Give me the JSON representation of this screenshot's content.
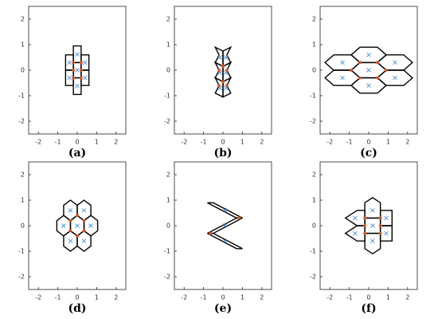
{
  "chart_data": [
    {
      "type": "polygon",
      "caption": "(a)",
      "xlim": [
        -2.5,
        2.5
      ],
      "ylim": [
        -2.5,
        2.5
      ],
      "xticks": [
        -2,
        -1,
        0,
        1,
        2
      ],
      "yticks": [
        -2,
        -1,
        0,
        1,
        2
      ],
      "cell_color": "#000000",
      "site_color": "#4a90d9",
      "node_color": "#d9531e",
      "cells": [
        {
          "x": [
            -0.2,
            0.2,
            0.2,
            -0.2
          ],
          "y": [
            0.95,
            0.95,
            0.3,
            0.3
          ]
        },
        {
          "x": [
            -0.2,
            0.2,
            0.2,
            -0.2
          ],
          "y": [
            0.3,
            0.3,
            -0.3,
            -0.3
          ]
        },
        {
          "x": [
            -0.2,
            0.2,
            0.2,
            -0.2
          ],
          "y": [
            -0.3,
            -0.3,
            -0.95,
            -0.95
          ]
        },
        {
          "x": [
            -0.6,
            -0.2,
            -0.2,
            -0.6
          ],
          "y": [
            0.6,
            0.6,
            0,
            0
          ]
        },
        {
          "x": [
            -0.6,
            -0.2,
            -0.2,
            -0.6
          ],
          "y": [
            0,
            0,
            -0.6,
            -0.6
          ]
        },
        {
          "x": [
            0.2,
            0.6,
            0.6,
            0.2
          ],
          "y": [
            0.6,
            0.6,
            0,
            0
          ]
        },
        {
          "x": [
            0.2,
            0.6,
            0.6,
            0.2
          ],
          "y": [
            0,
            0,
            -0.6,
            -0.6
          ]
        }
      ],
      "sites": {
        "x": [
          0,
          0,
          0,
          -0.4,
          -0.4,
          0.4,
          0.4
        ],
        "y": [
          0.62,
          0,
          -0.62,
          0.3,
          -0.3,
          0.3,
          -0.3
        ]
      },
      "nodes": {
        "x": [
          -0.2,
          0.2,
          -0.2,
          0.2,
          -0.2,
          0.2
        ],
        "y": [
          0.3,
          0.3,
          -0.3,
          -0.3,
          0,
          0
        ]
      }
    },
    {
      "type": "polygon",
      "caption": "(b)",
      "xlim": [
        -2.5,
        2.5
      ],
      "ylim": [
        -2.5,
        2.5
      ],
      "xticks": [
        -2,
        -1,
        0,
        1,
        2
      ],
      "yticks": [
        -2,
        -1,
        0,
        1,
        2
      ],
      "cell_color": "#000000",
      "site_color": "#4a90d9",
      "node_color": "#d9531e",
      "cells": [
        {
          "x": [
            -0.4,
            0,
            0,
            -0.4,
            -0.2
          ],
          "y": [
            0.9,
            0.75,
            0.15,
            0.3,
            0.6
          ]
        },
        {
          "x": [
            0.4,
            0,
            0,
            0.4,
            0.2
          ],
          "y": [
            0.9,
            0.75,
            0.15,
            0.3,
            0.6
          ]
        },
        {
          "x": [
            -0.4,
            0,
            0,
            -0.4,
            -0.2
          ],
          "y": [
            0.3,
            0.15,
            -0.45,
            -0.3,
            0
          ]
        },
        {
          "x": [
            0.4,
            0,
            0,
            0.4,
            0.2
          ],
          "y": [
            0.3,
            0.15,
            -0.45,
            -0.3,
            0
          ]
        },
        {
          "x": [
            -0.4,
            0,
            0,
            -0.4,
            -0.2
          ],
          "y": [
            -0.3,
            -0.45,
            -1.05,
            -0.9,
            -0.6
          ]
        },
        {
          "x": [
            0.4,
            0,
            0,
            0.4,
            0.2
          ],
          "y": [
            -0.3,
            -0.45,
            -1.05,
            -0.9,
            -0.6
          ]
        }
      ],
      "sites": {
        "x": [
          -0.15,
          0.15,
          -0.15,
          0.15,
          -0.15,
          0.15
        ],
        "y": [
          0.5,
          0.5,
          -0.1,
          -0.1,
          -0.7,
          -0.7
        ]
      },
      "nodes": {
        "x": [
          0,
          0,
          -0.2,
          0.2,
          -0.2,
          0.2
        ],
        "y": [
          0.15,
          -0.45,
          0,
          0,
          -0.6,
          -0.6
        ]
      }
    },
    {
      "type": "polygon",
      "caption": "(c)",
      "xlim": [
        -2.5,
        2.5
      ],
      "ylim": [
        -2.5,
        2.5
      ],
      "xticks": [
        -2,
        -1,
        0,
        1,
        2
      ],
      "yticks": [
        -2,
        -1,
        0,
        1,
        2
      ],
      "cell_color": "#000000",
      "site_color": "#4a90d9",
      "node_color": "#d9531e",
      "cells": [
        {
          "x": [
            -0.9,
            -0.45,
            0.45,
            0.9,
            0.45,
            -0.45
          ],
          "y": [
            0.6,
            0.9,
            0.9,
            0.6,
            0.3,
            0.3
          ]
        },
        {
          "x": [
            -0.9,
            -0.45,
            0.45,
            0.9,
            0.45,
            -0.45
          ],
          "y": [
            0,
            0.3,
            0.3,
            0,
            -0.3,
            -0.3
          ]
        },
        {
          "x": [
            -0.9,
            -0.45,
            0.45,
            0.9,
            0.45,
            -0.45
          ],
          "y": [
            -0.6,
            -0.3,
            -0.3,
            -0.6,
            -0.9,
            -0.9
          ]
        },
        {
          "x": [
            -2.25,
            -1.8,
            -0.9,
            -0.45,
            -0.9,
            -1.8
          ],
          "y": [
            0.3,
            0.6,
            0.6,
            0.3,
            0,
            0
          ]
        },
        {
          "x": [
            -2.25,
            -1.8,
            -0.9,
            -0.45,
            -0.9,
            -1.8
          ],
          "y": [
            -0.3,
            0,
            0,
            -0.3,
            -0.6,
            -0.6
          ]
        },
        {
          "x": [
            0.45,
            0.9,
            1.8,
            2.25,
            1.8,
            0.9
          ],
          "y": [
            0.3,
            0.6,
            0.6,
            0.3,
            0,
            0
          ]
        },
        {
          "x": [
            0.45,
            0.9,
            1.8,
            2.25,
            1.8,
            0.9
          ],
          "y": [
            -0.3,
            0,
            0,
            -0.3,
            -0.6,
            -0.6
          ]
        }
      ],
      "sites": {
        "x": [
          0,
          0,
          0,
          -1.35,
          -1.35,
          1.35,
          1.35
        ],
        "y": [
          0.6,
          0,
          -0.6,
          0.3,
          -0.3,
          0.3,
          -0.3
        ]
      },
      "nodes": {
        "x": [
          -0.45,
          0.45,
          -0.45,
          0.45,
          -0.9,
          0.9
        ],
        "y": [
          0.3,
          0.3,
          -0.3,
          -0.3,
          0,
          0
        ]
      }
    },
    {
      "type": "polygon",
      "caption": "(d)",
      "xlim": [
        -2.5,
        2.5
      ],
      "ylim": [
        -2.5,
        2.5
      ],
      "xticks": [
        -2,
        -1,
        0,
        1,
        2
      ],
      "yticks": [
        -2,
        -1,
        0,
        1,
        2
      ],
      "cell_color": "#000000",
      "site_color": "#4a90d9",
      "node_color": "#d9531e",
      "cells": [
        {
          "x": [
            0,
            0.35,
            0.35,
            0,
            -0.35,
            -0.35
          ],
          "y": [
            0.4,
            0.2,
            -0.2,
            -0.4,
            -0.2,
            0.2
          ]
        },
        {
          "x": [
            0.7,
            1.05,
            1.05,
            0.7,
            0.35,
            0.35
          ],
          "y": [
            0.4,
            0.2,
            -0.2,
            -0.4,
            -0.2,
            0.2
          ]
        },
        {
          "x": [
            -0.7,
            -0.35,
            -0.35,
            -0.7,
            -1.05,
            -1.05
          ],
          "y": [
            0.4,
            0.2,
            -0.2,
            -0.4,
            -0.2,
            0.2
          ]
        },
        {
          "x": [
            0.35,
            0.7,
            0.7,
            0.35,
            0,
            0
          ],
          "y": [
            1.0,
            0.8,
            0.4,
            0.2,
            0.4,
            0.8
          ]
        },
        {
          "x": [
            -0.35,
            0,
            0,
            -0.35,
            -0.7,
            -0.7
          ],
          "y": [
            1.0,
            0.8,
            0.4,
            0.2,
            0.4,
            0.8
          ]
        },
        {
          "x": [
            0.35,
            0.7,
            0.7,
            0.35,
            0,
            0
          ],
          "y": [
            -0.2,
            -0.4,
            -0.8,
            -1.0,
            -0.8,
            -0.4
          ]
        },
        {
          "x": [
            -0.35,
            0,
            0,
            -0.35,
            -0.7,
            -0.7
          ],
          "y": [
            -0.2,
            -0.4,
            -0.8,
            -1.0,
            -0.8,
            -0.4
          ]
        }
      ],
      "sites": {
        "x": [
          0,
          0.7,
          -0.7,
          0.35,
          -0.35,
          0.35,
          -0.35
        ],
        "y": [
          0,
          0,
          0,
          0.6,
          0.6,
          -0.6,
          -0.6
        ]
      },
      "nodes": {
        "x": [
          0,
          0.35,
          0.35,
          0,
          -0.35,
          -0.35
        ],
        "y": [
          0.4,
          0.2,
          -0.2,
          -0.4,
          -0.2,
          0.2
        ]
      }
    },
    {
      "type": "polygon",
      "caption": "(e)",
      "xlim": [
        -2.5,
        2.5
      ],
      "ylim": [
        -2.5,
        2.5
      ],
      "xticks": [
        -2,
        -1,
        0,
        1,
        2
      ],
      "yticks": [
        -2,
        -1,
        0,
        1,
        2
      ],
      "cell_color": "#000000",
      "site_color": "#4a90d9",
      "node_color": "#d9531e",
      "cells": [
        {
          "x": [
            -0.8,
            -0.5,
            1.0,
            0.7
          ],
          "y": [
            0.9,
            0.9,
            0.3,
            0.3
          ]
        },
        {
          "x": [
            0.7,
            1.0,
            -0.5,
            -0.8
          ],
          "y": [
            0.3,
            0.3,
            -0.3,
            -0.3
          ]
        },
        {
          "x": [
            -0.8,
            -0.5,
            1.0,
            0.7
          ],
          "y": [
            -0.3,
            -0.3,
            -0.9,
            -0.9
          ]
        }
      ],
      "sites": {
        "x": [
          0.1,
          0.1,
          0.1
        ],
        "y": [
          0.6,
          0,
          -0.6
        ]
      },
      "nodes": {
        "x": [
          0.85,
          -0.65
        ],
        "y": [
          0.3,
          -0.3
        ]
      }
    },
    {
      "type": "polygon",
      "caption": "(f)",
      "xlim": [
        -2.5,
        2.5
      ],
      "ylim": [
        -2.5,
        2.5
      ],
      "xticks": [
        -2,
        -1,
        0,
        1,
        2
      ],
      "yticks": [
        -2,
        -1,
        0,
        1,
        2
      ],
      "cell_color": "#000000",
      "site_color": "#4a90d9",
      "node_color": "#d9531e",
      "cells": [
        {
          "x": [
            -1.2,
            -0.6,
            -0.2,
            -0.2,
            -0.6
          ],
          "y": [
            0.3,
            0.6,
            0.6,
            0,
            0
          ]
        },
        {
          "x": [
            -1.2,
            -0.6,
            -0.2,
            -0.2,
            -0.6
          ],
          "y": [
            -0.3,
            0,
            0,
            -0.6,
            -0.6
          ]
        },
        {
          "x": [
            -0.2,
            0.2,
            0.6,
            0.6,
            -0.2
          ],
          "y": [
            0.9,
            1.1,
            0.9,
            0.3,
            0.3
          ]
        },
        {
          "x": [
            -0.2,
            0.6,
            0.6,
            -0.2
          ],
          "y": [
            0.3,
            0.3,
            -0.3,
            -0.3
          ]
        },
        {
          "x": [
            -0.2,
            0.6,
            0.6,
            0.2,
            -0.2
          ],
          "y": [
            -0.3,
            -0.3,
            -0.9,
            -1.1,
            -0.9
          ]
        },
        {
          "x": [
            0.6,
            1.2,
            1.2,
            0.6
          ],
          "y": [
            0.6,
            0.6,
            0,
            0
          ]
        },
        {
          "x": [
            0.6,
            1.2,
            1.2,
            0.6
          ],
          "y": [
            0,
            0,
            -0.6,
            -0.6
          ]
        }
      ],
      "sites": {
        "x": [
          -0.7,
          -0.7,
          0.2,
          0.2,
          0.2,
          0.9,
          0.9
        ],
        "y": [
          0.3,
          -0.3,
          0.6,
          0,
          -0.6,
          0.3,
          -0.3
        ]
      },
      "nodes": {
        "x": [
          -0.2,
          -0.2,
          -0.2,
          0.6,
          0.6,
          0.6
        ],
        "y": [
          0.3,
          0,
          -0.3,
          0.3,
          0,
          -0.3
        ]
      }
    }
  ]
}
